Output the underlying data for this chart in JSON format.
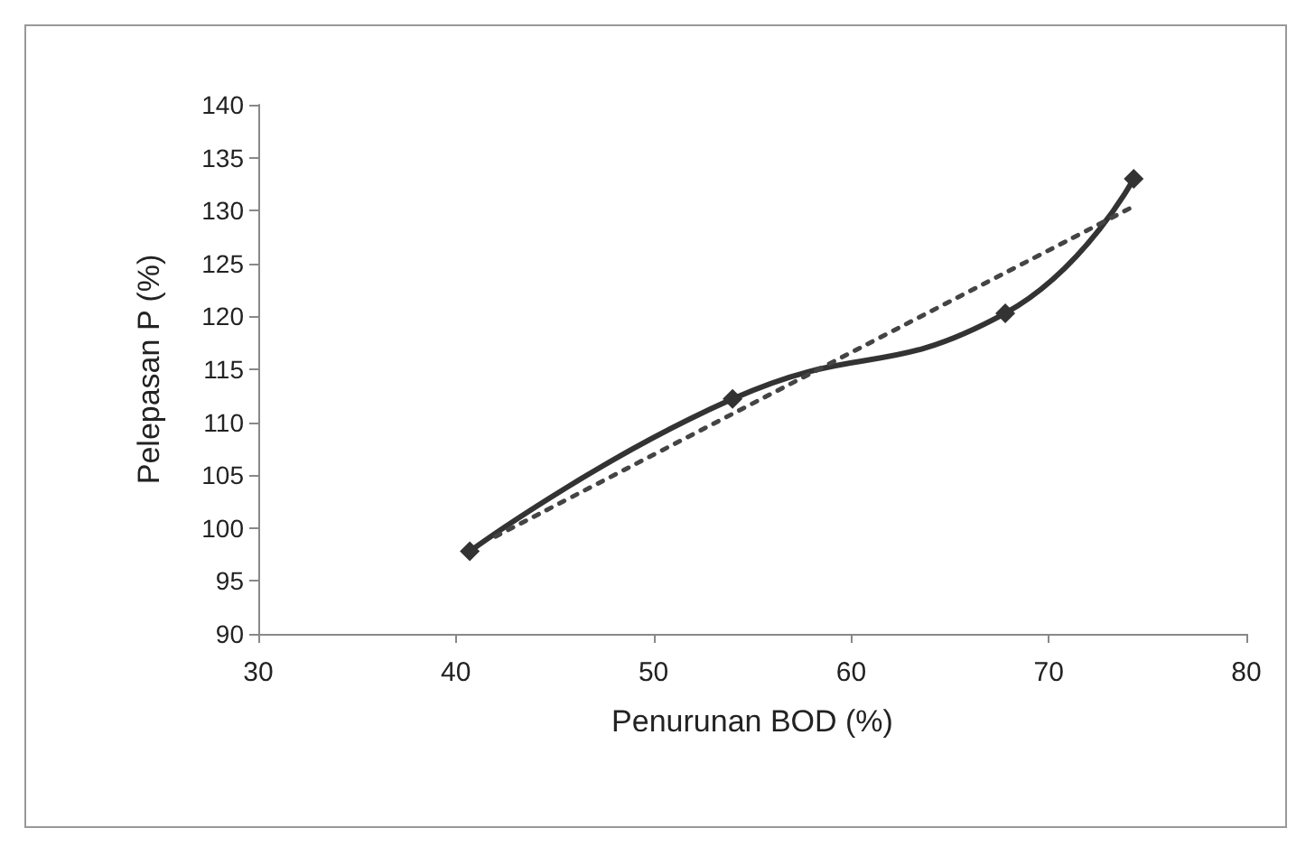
{
  "chart_data": {
    "type": "line",
    "xlabel": "Penurunan BOD (%)",
    "ylabel": "Pelepasan P (%)",
    "x": [
      40.7,
      54,
      67.8,
      74.3
    ],
    "series": [
      {
        "color": "#333333",
        "values": [
          97.8,
          112.2,
          120.3,
          133
        ],
        "marker": "diamond",
        "line_style": "solid"
      },
      {
        "type": "line",
        "color": "#444444",
        "x": [
          42,
          74.3
        ],
        "values": [
          99.2,
          130.4
        ],
        "marker": "none",
        "line_style": "dotted"
      }
    ],
    "xlim": [
      30,
      80
    ],
    "xticks": [
      30,
      40,
      50,
      60,
      70,
      80
    ],
    "ylim": [
      90,
      140
    ],
    "yticks": [
      90,
      95,
      100,
      105,
      110,
      115,
      120,
      125,
      130,
      135,
      140
    ],
    "grid": false
  }
}
